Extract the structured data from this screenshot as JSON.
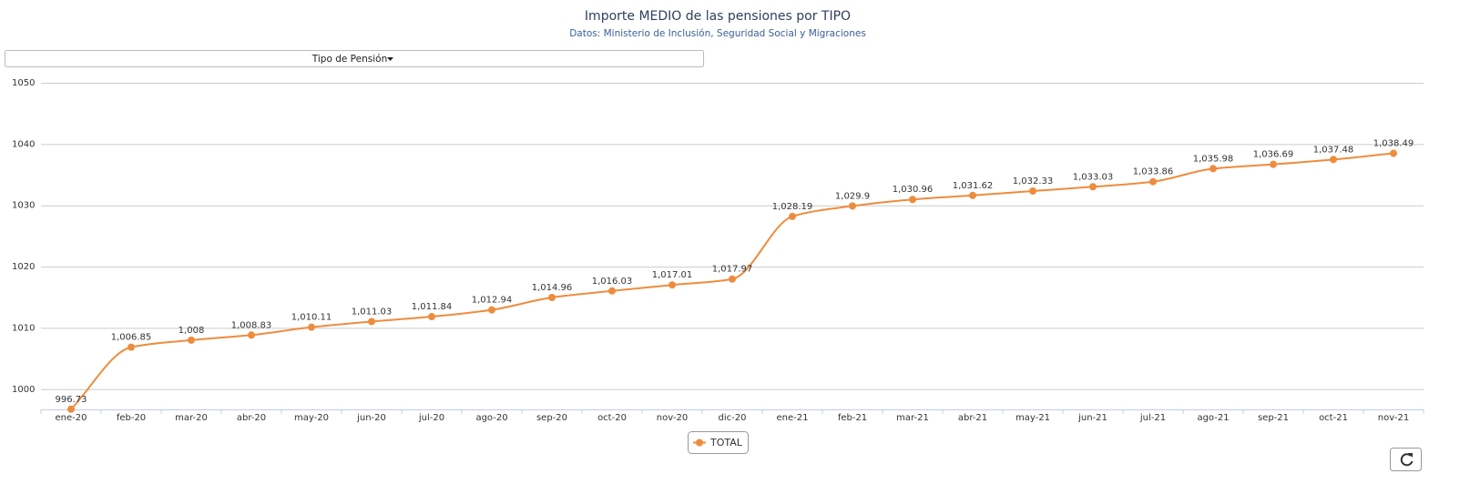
{
  "chart_data": {
    "type": "line",
    "title": "Importe MEDIO de las pensiones por TIPO",
    "subtitle": "Datos: Ministerio de Inclusión, Seguridad Social y Migraciones",
    "categories": [
      "ene-20",
      "feb-20",
      "mar-20",
      "abr-20",
      "may-20",
      "jun-20",
      "jul-20",
      "ago-20",
      "sep-20",
      "oct-20",
      "nov-20",
      "dic-20",
      "ene-21",
      "feb-21",
      "mar-21",
      "abr-21",
      "may-21",
      "jun-21",
      "jul-21",
      "ago-21",
      "sep-21",
      "oct-21",
      "nov-21"
    ],
    "series": [
      {
        "name": "TOTAL",
        "color": "#ee8c3e",
        "values": [
          996.73,
          1006.85,
          1008,
          1008.83,
          1010.11,
          1011.03,
          1011.84,
          1012.94,
          1014.96,
          1016.03,
          1017.01,
          1017.97,
          1028.19,
          1029.9,
          1030.96,
          1031.62,
          1032.33,
          1033.03,
          1033.86,
          1035.98,
          1036.69,
          1037.48,
          1038.49
        ],
        "value_labels": [
          "996.73",
          "1,006.85",
          "1,008",
          "1,008.83",
          "1,010.11",
          "1,011.03",
          "1,011.84",
          "1,012.94",
          "1,014.96",
          "1,016.03",
          "1,017.01",
          "1,017.97",
          "1,028.19",
          "1,029.9",
          "1,030.96",
          "1,031.62",
          "1,032.33",
          "1,033.03",
          "1,033.86",
          "1,035.98",
          "1,036.69",
          "1,037.48",
          "1,038.49"
        ]
      }
    ],
    "ylim": [
      996.7,
      1050
    ],
    "yticks": [
      1000,
      1010,
      1020,
      1030,
      1040,
      1050
    ],
    "grid": true,
    "legend": "bottom"
  },
  "controls": {
    "dropdown": "Tipo de Pensión"
  }
}
